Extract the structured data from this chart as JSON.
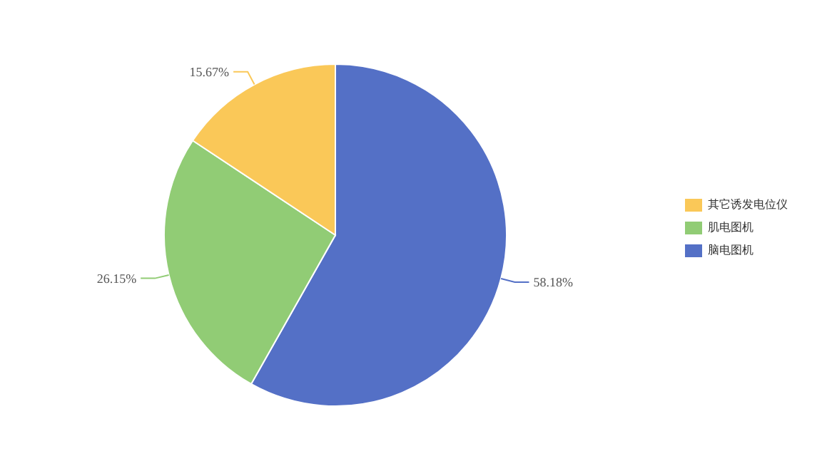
{
  "chart_data": {
    "type": "pie",
    "categories": [
      "脑电图机",
      "肌电图机",
      "其它诱发电位仪"
    ],
    "values": [
      58.18,
      26.15,
      15.67
    ],
    "colors": [
      "#5470c6",
      "#91cc75",
      "#fac858"
    ],
    "value_labels": [
      "58.18%",
      "26.15%",
      "15.67%"
    ],
    "legend": "right"
  }
}
